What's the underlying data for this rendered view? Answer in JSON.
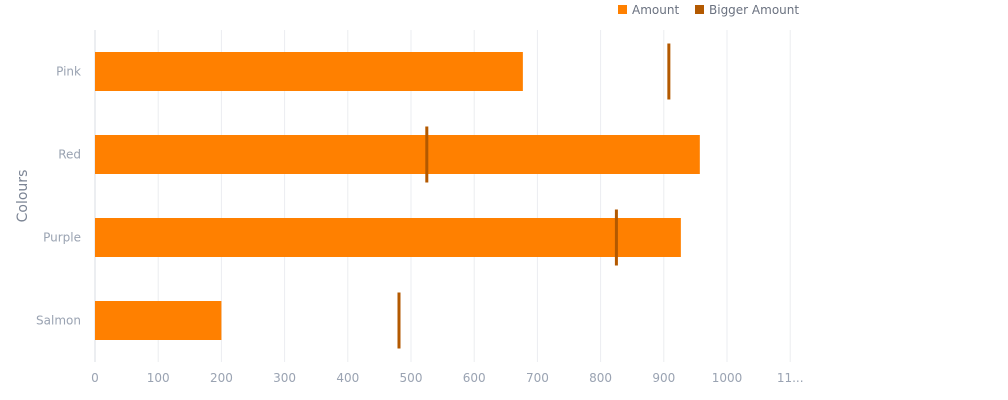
{
  "chart_data": {
    "type": "bar",
    "orientation": "horizontal",
    "categories": [
      "Pink",
      "Red",
      "Purple",
      "Salmon"
    ],
    "series": [
      {
        "name": "Amount",
        "values": [
          677,
          957,
          927,
          200
        ],
        "color": "#ff8000",
        "mark": "bar"
      },
      {
        "name": "Bigger Amount",
        "values": [
          908,
          525,
          825,
          481
        ],
        "color": "#b35900",
        "mark": "target-line"
      }
    ],
    "ylabel": "Colours",
    "xlabel": "",
    "x_ticks": [
      "0",
      "100",
      "200",
      "300",
      "400",
      "500",
      "600",
      "700",
      "800",
      "900",
      "1000",
      "11..."
    ],
    "xlim": [
      0,
      1100
    ],
    "grid": true,
    "legend_position": "top-right"
  }
}
